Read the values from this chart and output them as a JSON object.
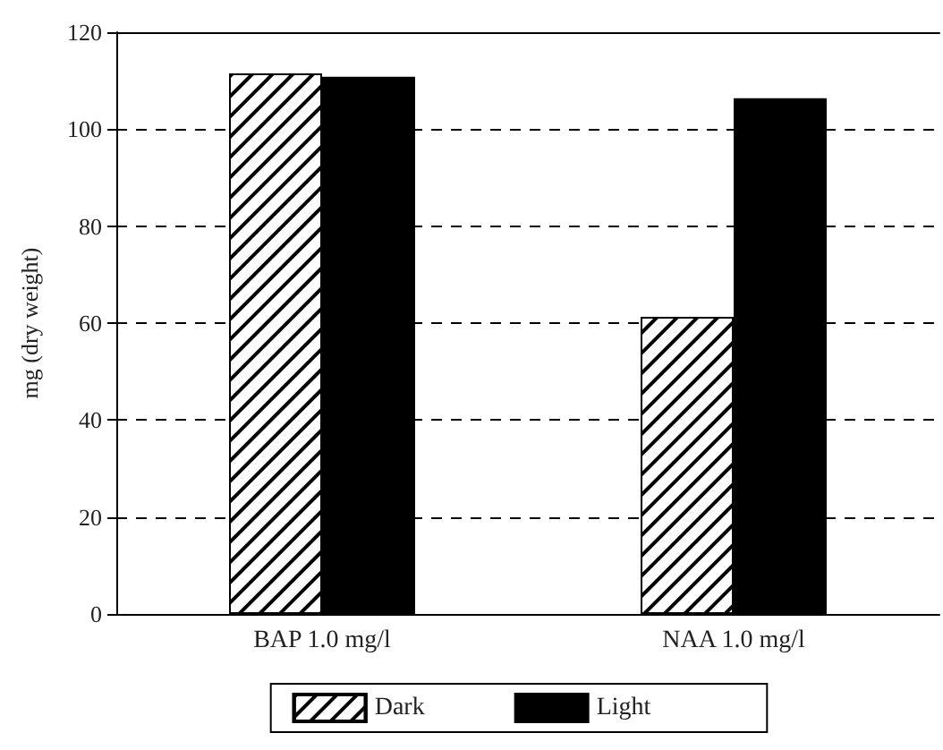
{
  "chart_data": {
    "type": "bar",
    "ylabel": "mg (dry weight)",
    "categories": [
      "BAP 1.0 mg/l",
      "NAA 1.0 mg/l"
    ],
    "series": [
      {
        "name": "Dark",
        "color": "#ffffff",
        "values": [
          111.5,
          61.3
        ]
      },
      {
        "name": "Light",
        "color": "#000000",
        "values": [
          110.8,
          106.4
        ]
      }
    ],
    "ylim": [
      0,
      120
    ],
    "yticks": [
      0,
      20,
      40,
      60,
      80,
      100,
      120
    ],
    "grid": "y",
    "legend": "bottom"
  }
}
